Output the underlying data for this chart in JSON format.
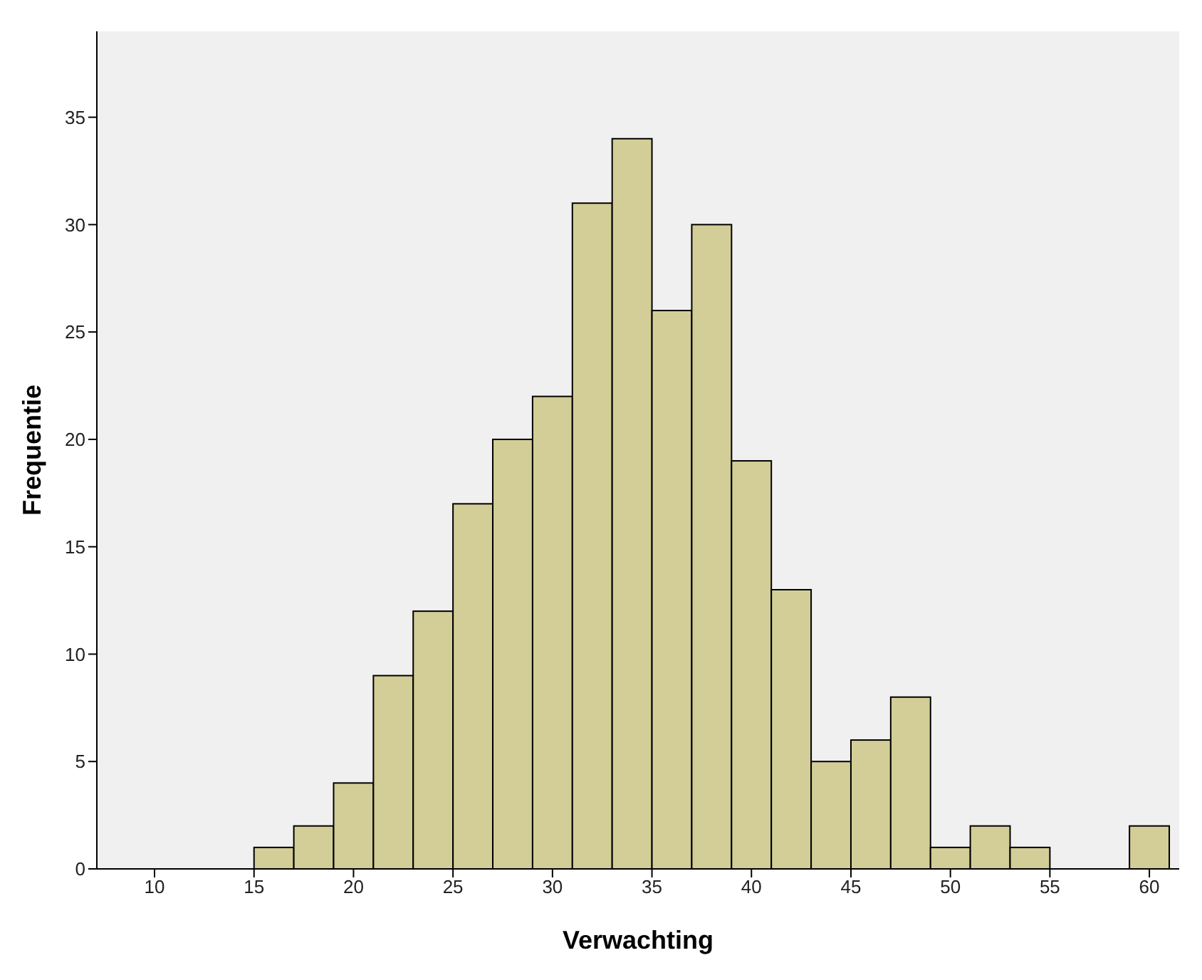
{
  "chart_data": {
    "type": "histogram",
    "xlabel": "Verwachting",
    "ylabel": "Frequentie",
    "bins": [
      15,
      17,
      19,
      21,
      23,
      25,
      27,
      29,
      31,
      33,
      35,
      37,
      39,
      41,
      43,
      45,
      47,
      49,
      51,
      53,
      55,
      57,
      59,
      61
    ],
    "values": [
      1,
      2,
      4,
      9,
      12,
      17,
      20,
      22,
      31,
      34,
      26,
      30,
      19,
      13,
      5,
      6,
      8,
      1,
      2,
      1,
      0,
      0,
      2
    ],
    "color": "#d3ce97",
    "xlim": [
      7.1,
      61.5
    ],
    "xticks": [
      10,
      15,
      20,
      25,
      30,
      35,
      40,
      45,
      50,
      55,
      60
    ],
    "ylim": [
      0,
      39
    ],
    "yticks": [
      0,
      5,
      10,
      15,
      20,
      25,
      30,
      35
    ],
    "grid": false
  }
}
